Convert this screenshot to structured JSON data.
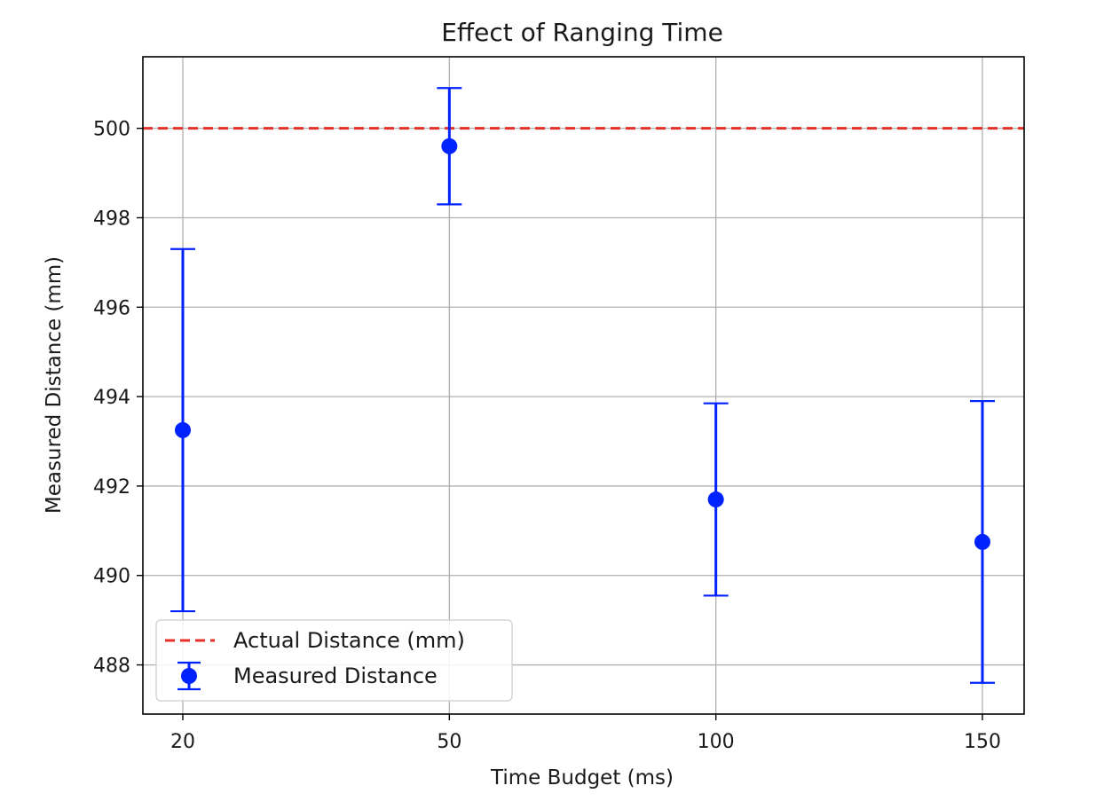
{
  "chart_data": {
    "type": "scatter",
    "title": "Effect of Ranging Time",
    "xlabel": "Time Budget (ms)",
    "ylabel": "Measured Distance (mm)",
    "x_categorical": true,
    "categories": [
      "20",
      "50",
      "100",
      "150"
    ],
    "ylim": [
      486.9,
      501.6
    ],
    "yticks": [
      488,
      490,
      492,
      494,
      496,
      498,
      500
    ],
    "grid": true,
    "legend_position": "lower-left",
    "series": [
      {
        "name": "Measured Distance",
        "kind": "errorbar",
        "color": "#0022ff",
        "x": [
          "20",
          "50",
          "100",
          "150"
        ],
        "y": [
          493.25,
          499.6,
          491.7,
          490.75
        ],
        "yerr_low": [
          489.2,
          498.3,
          489.55,
          487.6
        ],
        "yerr_high": [
          497.3,
          500.9,
          493.85,
          493.9
        ]
      },
      {
        "name": "Actual Distance (mm)",
        "kind": "hline",
        "color": "#e8302a",
        "style": "dashed",
        "y": 500
      }
    ]
  }
}
